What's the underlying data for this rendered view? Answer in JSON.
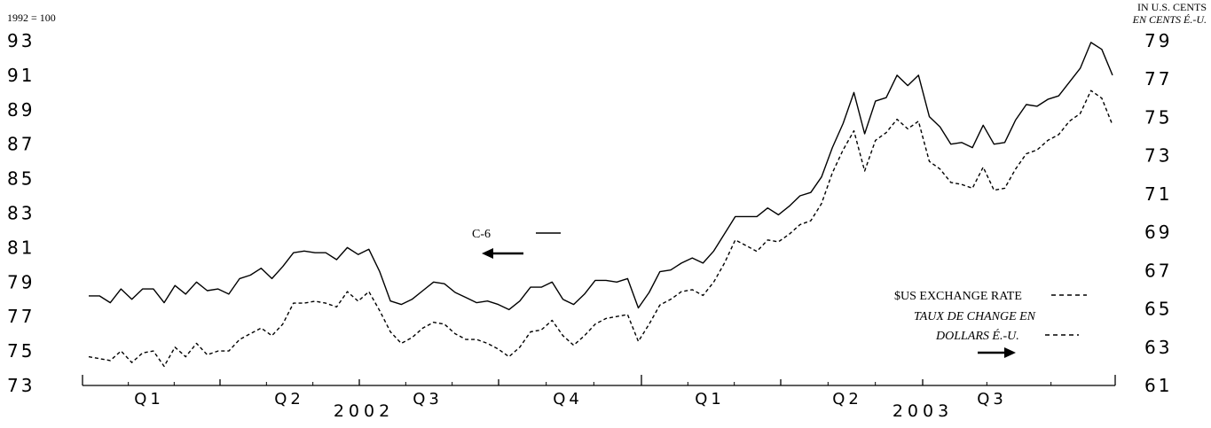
{
  "chart_data": {
    "type": "line",
    "left_axis_label": "1992 = 100",
    "right_axis_label_en": "IN U.S. CENTS",
    "right_axis_label_fr": "EN CENTS É.-U.",
    "left_ylim": [
      73,
      93
    ],
    "right_ylim": [
      61,
      79
    ],
    "left_ticks": [
      "93",
      "91",
      "89",
      "87",
      "85",
      "83",
      "81",
      "79",
      "77",
      "75",
      "73"
    ],
    "right_ticks": [
      "79",
      "77",
      "75",
      "73",
      "71",
      "69",
      "67",
      "65",
      "63",
      "61"
    ],
    "quarters": [
      "Q1",
      "Q2",
      "Q3",
      "Q4",
      "Q1",
      "Q2",
      "Q3"
    ],
    "years": [
      "2002",
      "2003"
    ],
    "grid": false,
    "series": [
      {
        "name": "C-6",
        "axis": "left",
        "style": "solid",
        "values": [
          78.2,
          78.2,
          77.8,
          78.6,
          78.0,
          78.6,
          78.6,
          77.8,
          78.8,
          78.3,
          79.0,
          78.5,
          78.6,
          78.3,
          79.2,
          79.4,
          79.8,
          79.2,
          79.9,
          80.7,
          80.8,
          80.7,
          80.7,
          80.3,
          81.0,
          80.6,
          80.9,
          79.6,
          77.9,
          77.7,
          78.0,
          78.5,
          79.0,
          78.9,
          78.4,
          78.1,
          77.8,
          77.9,
          77.7,
          77.4,
          77.9,
          78.7,
          78.7,
          79.0,
          78.0,
          77.7,
          78.3,
          79.1,
          79.1,
          79.0,
          79.2,
          77.5,
          78.4,
          79.6,
          79.7,
          80.1,
          80.4,
          80.1,
          80.8,
          81.8,
          82.8,
          82.8,
          82.8,
          83.3,
          82.9,
          83.4,
          84.0,
          84.2,
          85.1,
          86.8,
          88.2,
          90.0,
          87.6,
          89.5,
          89.7,
          91.0,
          90.4,
          91.0,
          88.6,
          88.0,
          87.0,
          87.1,
          86.8,
          88.1,
          87.0,
          87.1,
          88.4,
          89.3,
          89.2,
          89.6,
          89.8,
          90.6,
          91.4,
          92.9,
          92.5,
          91.0
        ]
      },
      {
        "name": "$US EXCHANGE RATE",
        "name_fr": "TAUX DE CHANGE EN DOLLARS É.-U.",
        "axis": "right",
        "style": "dashed",
        "values": [
          62.5,
          62.4,
          62.3,
          62.8,
          62.2,
          62.7,
          62.8,
          62.0,
          63.0,
          62.5,
          63.2,
          62.6,
          62.8,
          62.8,
          63.4,
          63.7,
          64.0,
          63.6,
          64.2,
          65.3,
          65.3,
          65.4,
          65.3,
          65.1,
          65.9,
          65.4,
          65.9,
          64.9,
          63.8,
          63.2,
          63.5,
          64.0,
          64.3,
          64.2,
          63.7,
          63.4,
          63.4,
          63.2,
          62.9,
          62.5,
          63.0,
          63.8,
          63.9,
          64.4,
          63.6,
          63.1,
          63.6,
          64.2,
          64.5,
          64.6,
          64.7,
          63.3,
          64.2,
          65.2,
          65.5,
          65.9,
          66.0,
          65.7,
          66.4,
          67.4,
          68.6,
          68.3,
          68.0,
          68.6,
          68.5,
          68.9,
          69.4,
          69.6,
          70.5,
          72.1,
          73.3,
          74.3,
          72.2,
          73.8,
          74.2,
          74.9,
          74.4,
          74.8,
          72.7,
          72.3,
          71.6,
          71.5,
          71.3,
          72.4,
          71.2,
          71.3,
          72.3,
          73.1,
          73.3,
          73.8,
          74.1,
          74.8,
          75.2,
          76.4,
          76.0,
          74.6
        ]
      }
    ],
    "legend": {
      "c6_label": "C-6",
      "fx_label_en": "$US EXCHANGE RATE",
      "fx_label_fr_line1": "TAUX DE CHANGE EN",
      "fx_label_fr_line2": "DOLLARS É.-U."
    }
  }
}
